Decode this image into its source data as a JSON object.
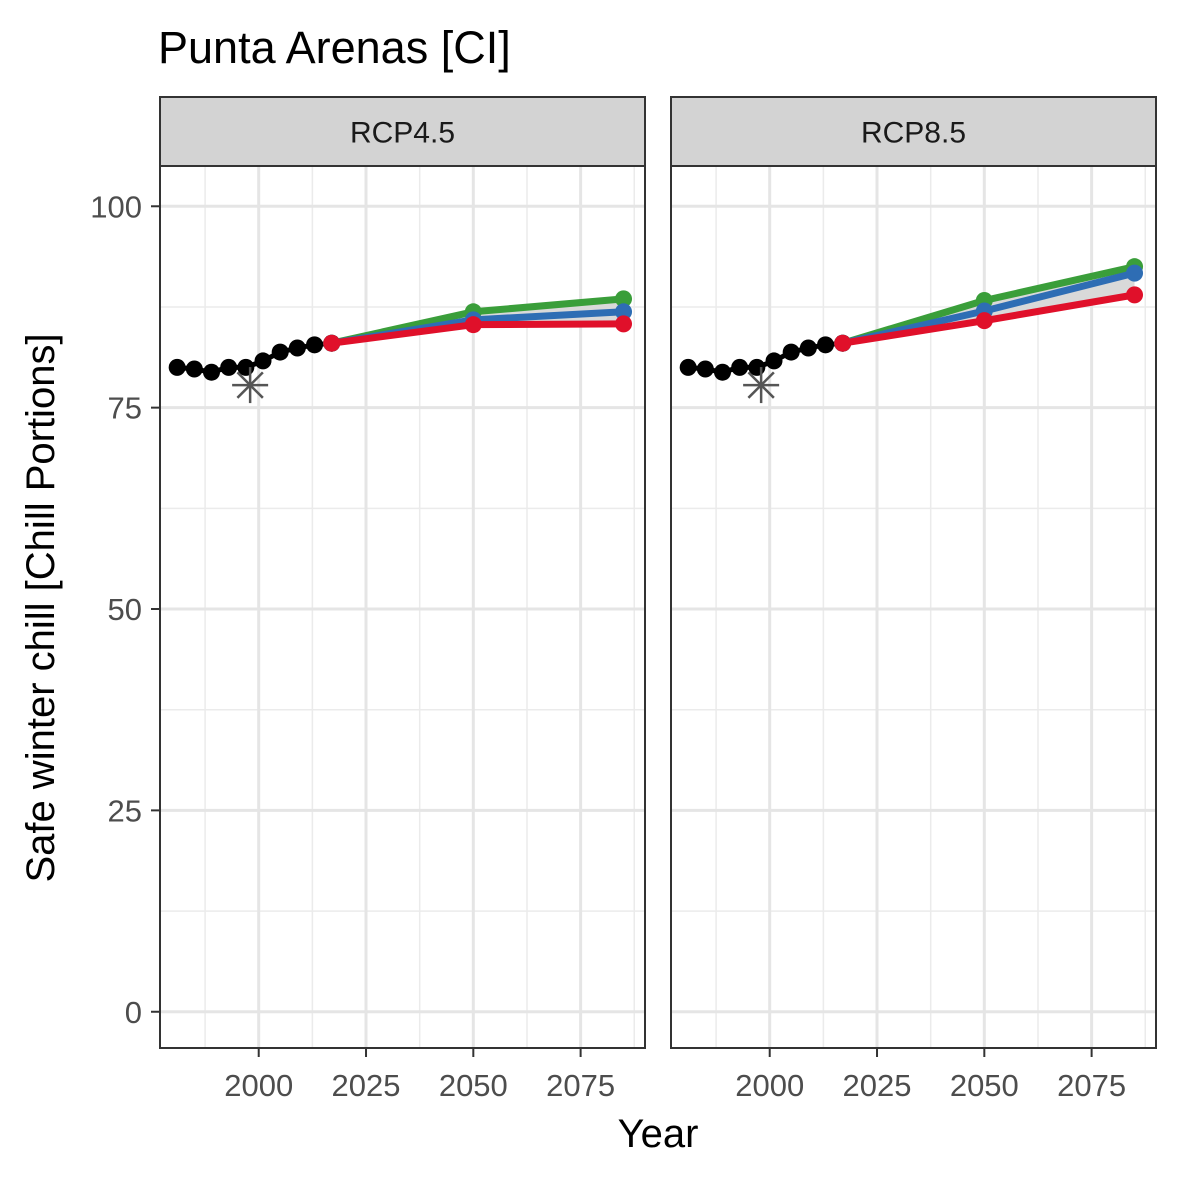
{
  "chart_data": {
    "type": "line",
    "title": "Punta Arenas [CI]",
    "xlabel": "Year",
    "ylabel": "Safe winter chill [Chill Portions]",
    "xlim": [
      1977,
      2090
    ],
    "ylim": [
      -4.5,
      105
    ],
    "x_ticks": [
      2000,
      2025,
      2050,
      2075
    ],
    "y_ticks": [
      0,
      25,
      50,
      75,
      100
    ],
    "grid": true,
    "colors": {
      "historic": "#000000",
      "green": "#3A9E3A",
      "blue": "#2E6DB4",
      "red": "#E0102A",
      "band": "#D9D9D9",
      "observed_marker": "#555555",
      "strip": "#D3D3D3"
    },
    "panels": [
      {
        "label": "RCP4.5",
        "historic": {
          "x": [
            1981,
            1985,
            1989,
            1993,
            1997,
            2001,
            2005,
            2009,
            2013,
            2017
          ],
          "y": [
            80.0,
            79.8,
            79.4,
            80.0,
            80.0,
            80.8,
            81.9,
            82.4,
            82.8,
            83.0
          ]
        },
        "observed": {
          "x": 1998,
          "y": 77.8
        },
        "series": [
          {
            "color": "green",
            "x": [
              2017,
              2050,
              2085
            ],
            "y": [
              83.0,
              86.9,
              88.5
            ]
          },
          {
            "color": "blue",
            "x": [
              2017,
              2050,
              2085
            ],
            "y": [
              83.0,
              85.9,
              86.9
            ]
          },
          {
            "color": "red",
            "x": [
              2017,
              2050,
              2085
            ],
            "y": [
              83.0,
              85.3,
              85.4
            ]
          }
        ]
      },
      {
        "label": "RCP8.5",
        "historic": {
          "x": [
            1981,
            1985,
            1989,
            1993,
            1997,
            2001,
            2005,
            2009,
            2013,
            2017
          ],
          "y": [
            80.0,
            79.8,
            79.4,
            80.0,
            80.0,
            80.8,
            81.9,
            82.4,
            82.8,
            83.0
          ]
        },
        "observed": {
          "x": 1998,
          "y": 77.8
        },
        "series": [
          {
            "color": "green",
            "x": [
              2017,
              2050,
              2085
            ],
            "y": [
              83.0,
              88.3,
              92.5
            ]
          },
          {
            "color": "blue",
            "x": [
              2017,
              2050,
              2085
            ],
            "y": [
              83.0,
              87.0,
              91.7
            ]
          },
          {
            "color": "red",
            "x": [
              2017,
              2050,
              2085
            ],
            "y": [
              83.0,
              85.8,
              89.0
            ]
          }
        ]
      }
    ]
  }
}
